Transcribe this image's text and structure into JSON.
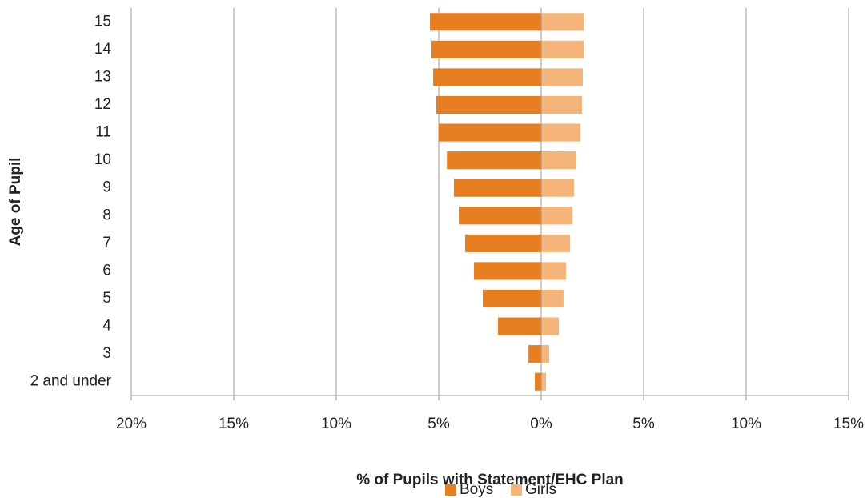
{
  "chart_data": {
    "type": "bar",
    "orientation": "horizontal",
    "stacked": true,
    "x_label": "% of Pupils with Statement/EHC Plan",
    "y_label": "Age of Pupil",
    "categories": [
      "2 and under",
      "3",
      "4",
      "5",
      "6",
      "7",
      "8",
      "9",
      "10",
      "11",
      "12",
      "13",
      "14",
      "15"
    ],
    "series": [
      {
        "name": "Boys",
        "color": "#e87e22",
        "values": [
          -0.31,
          -0.62,
          -2.11,
          -2.85,
          -3.28,
          -3.71,
          -4.02,
          -4.26,
          -4.6,
          -5.0,
          -5.12,
          -5.27,
          -5.35,
          -5.43
        ]
      },
      {
        "name": "Girls",
        "color": "#f4b47a",
        "values": [
          0.23,
          0.39,
          0.86,
          1.09,
          1.21,
          1.41,
          1.52,
          1.6,
          1.72,
          1.91,
          1.99,
          2.03,
          2.07,
          2.07
        ]
      }
    ],
    "xlim": [
      -20,
      15
    ],
    "xticks": [
      {
        "value": -20,
        "label": "20%"
      },
      {
        "value": -15,
        "label": "15%"
      },
      {
        "value": -10,
        "label": "10%"
      },
      {
        "value": -5,
        "label": "5%"
      },
      {
        "value": 0,
        "label": "0%"
      },
      {
        "value": 5,
        "label": "5%"
      },
      {
        "value": 10,
        "label": "10%"
      },
      {
        "value": 15,
        "label": "15%"
      }
    ],
    "grid": true,
    "legend": "bottom"
  }
}
